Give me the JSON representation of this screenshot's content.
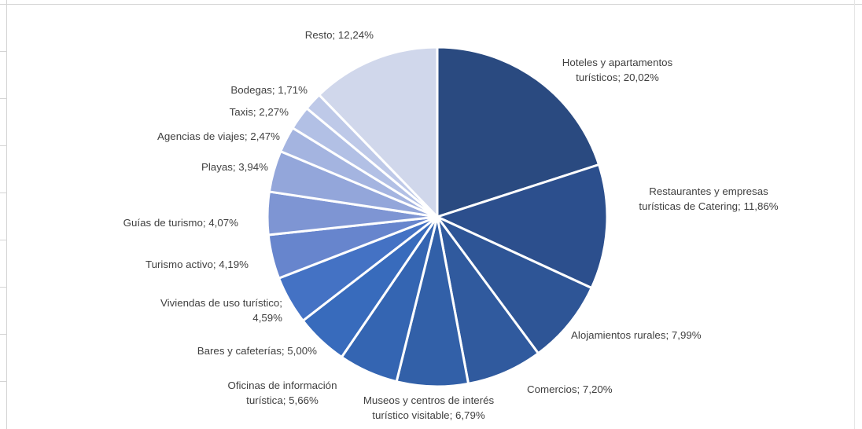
{
  "chart_data": {
    "type": "pie",
    "title": "",
    "legend": "none",
    "slices": [
      {
        "label": "Hoteles y apartamentos turísticos",
        "value": 20.02,
        "display": "Hoteles y apartamentos turísticos; 20,02%",
        "color": "#2a4a80"
      },
      {
        "label": "Restaurantes y empresas turísticas de Catering",
        "value": 11.86,
        "display": "Restaurantes y empresas turísticas de Catering; 11,86%",
        "color": "#2c4f8d"
      },
      {
        "label": "Alojamientos rurales",
        "value": 7.99,
        "display": "Alojamientos rurales; 7,99%",
        "color": "#2e5596"
      },
      {
        "label": "Comercios",
        "value": 7.2,
        "display": "Comercios; 7,20%",
        "color": "#305a9e"
      },
      {
        "label": "Museos y centros de interés turístico visitable",
        "value": 6.79,
        "display": "Museos y centros de interés turístico visitable; 6,79%",
        "color": "#3260a8"
      },
      {
        "label": "Oficinas de información turística",
        "value": 5.66,
        "display": "Oficinas de información turística; 5,66%",
        "color": "#3465b2"
      },
      {
        "label": "Bares y cafeterías",
        "value": 5.0,
        "display": "Bares y cafeterías; 5,00%",
        "color": "#386bbc"
      },
      {
        "label": "Viviendas de uso turístico",
        "value": 4.59,
        "display": "Viviendas de uso turístico; 4,59%",
        "color": "#4472c4"
      },
      {
        "label": "Turismo activo",
        "value": 4.19,
        "display": "Turismo activo; 4,19%",
        "color": "#6785cd"
      },
      {
        "label": "Guías de turismo",
        "value": 4.07,
        "display": "Guías de turismo; 4,07%",
        "color": "#7e95d3"
      },
      {
        "label": "Playas",
        "value": 3.94,
        "display": "Playas; 3,94%",
        "color": "#93a6da"
      },
      {
        "label": "Agencias de viajes",
        "value": 2.47,
        "display": "Agencias de viajes; 2,47%",
        "color": "#a4b4e0"
      },
      {
        "label": "Taxis",
        "value": 2.27,
        "display": "Taxis; 2,27%",
        "color": "#b2c0e5"
      },
      {
        "label": "Bodegas",
        "value": 1.71,
        "display": "Bodegas; 1,71%",
        "color": "#bec9e8"
      },
      {
        "label": "Resto",
        "value": 12.24,
        "display": "Resto; 12,24%",
        "color": "#d0d7eb"
      }
    ],
    "labels": [
      [
        "Hoteles y apartamentos",
        "turísticos; 20,02%"
      ],
      [
        "Restaurantes y empresas",
        "turísticas de Catering; 11,86%"
      ],
      [
        "Alojamientos rurales; 7,99%"
      ],
      [
        "Comercios; 7,20%"
      ],
      [
        "Museos y centros de interés",
        "turístico visitable; 6,79%"
      ],
      [
        "Oficinas de información",
        "turística; 5,66%"
      ],
      [
        "Bares y cafeterías; 5,00%"
      ],
      [
        "Viviendas de uso turístico;",
        "4,59%"
      ],
      [
        "Turismo activo; 4,19%"
      ],
      [
        "Guías de turismo; 4,07%"
      ],
      [
        "Playas; 3,94%"
      ],
      [
        "Agencias de viajes; 2,47%"
      ],
      [
        "Taxis; 2,27%"
      ],
      [
        "Bodegas; 1,71%"
      ],
      [
        "Resto; 12,24%"
      ]
    ]
  }
}
